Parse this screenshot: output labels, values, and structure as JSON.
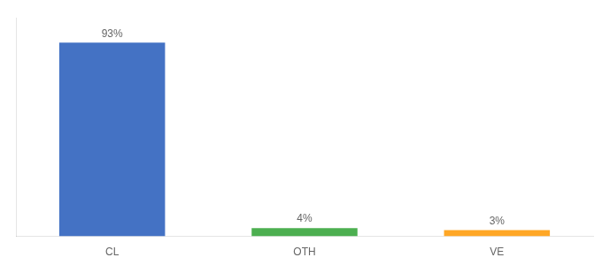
{
  "chart_data": {
    "type": "bar",
    "categories": [
      "CL",
      "OTH",
      "VE"
    ],
    "values": [
      93,
      4,
      3
    ],
    "value_labels": [
      "93%",
      "4%",
      "3%"
    ],
    "data_labels": true,
    "colors": [
      "#4472C4",
      "#4CAF50",
      "#FFA726"
    ],
    "ylim": [
      0,
      105
    ],
    "grid": false,
    "tick_labels": "x"
  }
}
